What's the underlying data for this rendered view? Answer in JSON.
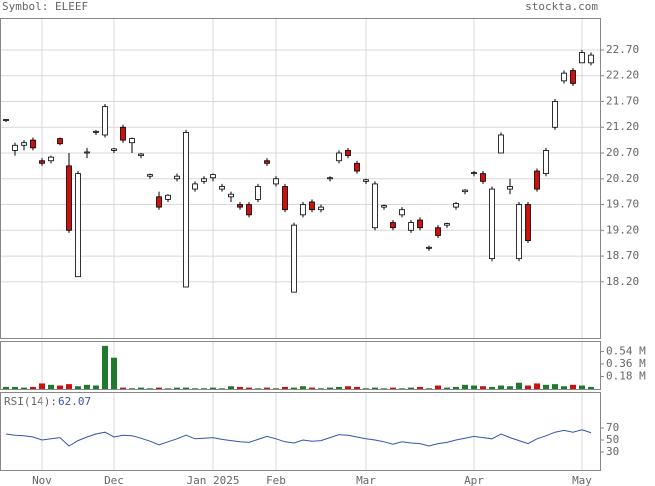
{
  "chart_data": {
    "type": "candlestick",
    "title": "Symbol: ELEEF",
    "source": "stockta.com",
    "categories": [
      null,
      null,
      null,
      null,
      "Nov",
      null,
      null,
      null,
      null,
      null,
      null,
      null,
      "Dec",
      null,
      null,
      null,
      null,
      null,
      null,
      null,
      null,
      null,
      null,
      "Jan 2025",
      null,
      null,
      null,
      null,
      null,
      null,
      "Feb",
      null,
      null,
      null,
      null,
      null,
      null,
      null,
      null,
      null,
      "Mar",
      null,
      null,
      null,
      null,
      null,
      null,
      null,
      null,
      null,
      null,
      null,
      "Apr",
      null,
      null,
      null,
      null,
      null,
      null,
      null,
      null,
      null,
      null,
      null,
      "May",
      null
    ],
    "open": [
      21.33,
      20.75,
      20.85,
      20.95,
      20.55,
      20.55,
      20.98,
      20.45,
      18.3,
      20.7,
      21.1,
      21.05,
      20.75,
      21.2,
      20.9,
      20.65,
      20.25,
      19.85,
      19.8,
      20.2,
      18.1,
      20.0,
      20.15,
      20.22,
      20.0,
      19.85,
      19.7,
      19.7,
      19.8,
      20.55,
      20.1,
      20.05,
      18.0,
      19.5,
      19.75,
      19.6,
      20.2,
      20.55,
      20.75,
      20.5,
      20.15,
      19.25,
      19.65,
      19.35,
      19.5,
      19.2,
      19.4,
      18.85,
      19.25,
      19.3,
      19.65,
      19.95,
      20.3,
      20.3,
      18.65,
      20.7,
      20.0,
      18.65,
      19.7,
      20.35,
      20.3,
      21.2,
      22.1,
      22.3,
      22.45,
      22.45
    ],
    "high": [
      21.36,
      20.9,
      20.95,
      21.0,
      20.6,
      20.65,
      21.0,
      20.7,
      20.35,
      20.8,
      21.15,
      21.65,
      20.8,
      21.25,
      21.0,
      20.7,
      20.3,
      19.95,
      19.9,
      20.3,
      21.15,
      20.15,
      20.25,
      20.3,
      20.1,
      19.95,
      19.75,
      19.75,
      20.1,
      20.6,
      20.25,
      20.1,
      19.35,
      19.75,
      19.8,
      19.7,
      20.25,
      20.75,
      20.8,
      20.55,
      20.2,
      20.15,
      19.7,
      19.4,
      19.65,
      19.4,
      19.45,
      18.9,
      19.3,
      19.35,
      19.75,
      20.0,
      20.35,
      20.35,
      20.05,
      21.1,
      20.2,
      19.75,
      19.75,
      20.4,
      20.8,
      21.75,
      22.3,
      22.35,
      22.7,
      22.65
    ],
    "low": [
      21.3,
      20.65,
      20.75,
      20.75,
      20.45,
      20.5,
      20.85,
      19.15,
      18.3,
      20.6,
      21.05,
      21.0,
      20.7,
      20.9,
      20.7,
      20.6,
      20.2,
      19.6,
      19.75,
      20.15,
      18.1,
      19.95,
      20.1,
      20.15,
      19.95,
      19.75,
      19.6,
      19.45,
      19.75,
      20.45,
      20.05,
      19.55,
      18.0,
      19.45,
      19.55,
      19.55,
      20.15,
      20.5,
      20.6,
      20.3,
      20.1,
      19.2,
      19.6,
      19.2,
      19.45,
      19.15,
      19.2,
      18.8,
      19.05,
      19.25,
      19.6,
      19.9,
      20.25,
      20.1,
      18.6,
      20.7,
      19.9,
      18.6,
      18.95,
      19.95,
      20.25,
      21.15,
      22.05,
      22.0,
      22.45,
      22.4
    ],
    "close": [
      21.35,
      20.85,
      20.9,
      20.8,
      20.5,
      20.62,
      20.88,
      19.2,
      20.3,
      20.72,
      21.12,
      21.6,
      20.78,
      20.95,
      20.98,
      20.68,
      20.28,
      19.65,
      19.88,
      20.25,
      21.1,
      20.1,
      20.2,
      20.28,
      20.05,
      19.9,
      19.65,
      19.5,
      20.05,
      20.5,
      20.2,
      19.6,
      19.3,
      19.7,
      19.6,
      19.65,
      20.22,
      20.7,
      20.65,
      20.35,
      20.18,
      20.1,
      19.68,
      19.25,
      19.6,
      19.35,
      19.25,
      18.87,
      19.1,
      19.33,
      19.72,
      19.98,
      20.32,
      20.15,
      20.0,
      21.05,
      20.05,
      19.7,
      19.0,
      20.0,
      20.75,
      21.7,
      22.25,
      22.05,
      22.65,
      22.6
    ],
    "up_color": "#ffffff",
    "down_color": "#cc1111",
    "ylim": [
      17.11,
      23.32
    ],
    "yticks": [
      {
        "value": 18.2,
        "label": "18.20"
      },
      {
        "value": 18.7,
        "label": "18.70"
      },
      {
        "value": 19.2,
        "label": "19.20"
      },
      {
        "value": 19.7,
        "label": "19.70"
      },
      {
        "value": 20.2,
        "label": "20.20"
      },
      {
        "value": 20.7,
        "label": "20.70"
      },
      {
        "value": 21.2,
        "label": "21.20"
      },
      {
        "value": 21.7,
        "label": "21.70"
      },
      {
        "value": 22.2,
        "label": "22.20"
      },
      {
        "value": 22.7,
        "label": "22.70"
      }
    ],
    "grid": true,
    "volume": {
      "values": [
        0.03,
        0.03,
        0.02,
        0.03,
        0.08,
        0.06,
        0.05,
        0.07,
        0.04,
        0.06,
        0.05,
        0.62,
        0.45,
        0.02,
        0.01,
        0.02,
        0.01,
        0.02,
        0.01,
        0.02,
        0.02,
        0.01,
        0.01,
        0.02,
        0.01,
        0.04,
        0.03,
        0.02,
        0.01,
        0.02,
        0.01,
        0.03,
        0.02,
        0.04,
        0.02,
        0.01,
        0.02,
        0.03,
        0.04,
        0.03,
        0.01,
        0.02,
        0.01,
        0.02,
        0.01,
        0.02,
        0.03,
        0.01,
        0.05,
        0.02,
        0.03,
        0.06,
        0.05,
        0.04,
        0.03,
        0.05,
        0.04,
        0.09,
        0.05,
        0.08,
        0.06,
        0.07,
        0.04,
        0.06,
        0.05,
        0.03
      ],
      "up_color": "#1f7a2e",
      "down_color": "#cc1111",
      "ylim": [
        0,
        0.69
      ],
      "yticks": [
        {
          "value": 0.18,
          "label": "0.18 M"
        },
        {
          "value": 0.36,
          "label": "0.36 M"
        },
        {
          "value": 0.54,
          "label": "0.54 M"
        }
      ]
    },
    "rsi": {
      "label": "RSI(14):",
      "value": 62.07,
      "color": "#3355aa",
      "values": [
        60,
        58,
        57,
        55,
        50,
        52,
        54,
        40,
        49,
        55,
        60,
        63,
        55,
        58,
        57,
        53,
        48,
        42,
        47,
        52,
        58,
        52,
        53,
        54,
        51,
        49,
        47,
        46,
        51,
        56,
        52,
        47,
        45,
        50,
        48,
        49,
        54,
        59,
        58,
        55,
        52,
        50,
        47,
        43,
        47,
        45,
        44,
        40,
        44,
        46,
        50,
        53,
        56,
        54,
        52,
        60,
        54,
        49,
        44,
        52,
        57,
        63,
        66,
        63,
        67,
        62.07
      ],
      "ylim": [
        0,
        130
      ],
      "yticks": [
        30,
        50,
        70
      ]
    }
  }
}
